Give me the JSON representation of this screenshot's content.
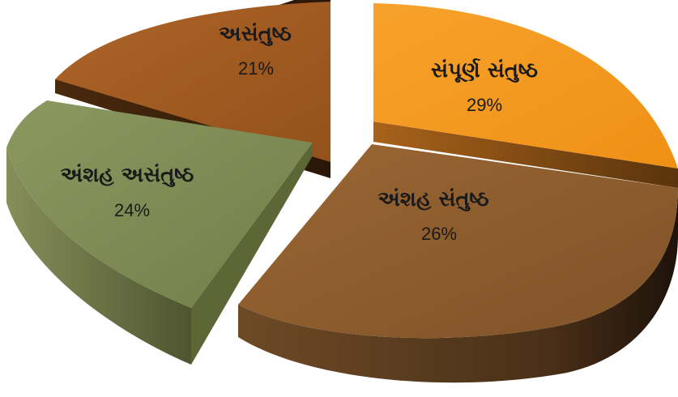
{
  "chart_data": {
    "type": "pie",
    "title": "",
    "slices": [
      {
        "label": "સંપૂર્ણ સંતુષ્ઠ",
        "value_label": "29%",
        "value": 29,
        "color": "#f59a1f"
      },
      {
        "label": "અંશહ સંતુષ્ઠ",
        "value_label": "26%",
        "value": 26,
        "color": "#8c5b2c"
      },
      {
        "label": "અંશહ અસંતુષ્ઠ",
        "value_label": "24%",
        "value": 24,
        "color": "#7d8a4e"
      },
      {
        "label": "અસંતુષ્ઠ",
        "value_label": "21%",
        "value": 21,
        "color": "#a05a22"
      }
    ],
    "legend": "none",
    "style": "3d-exploded"
  }
}
